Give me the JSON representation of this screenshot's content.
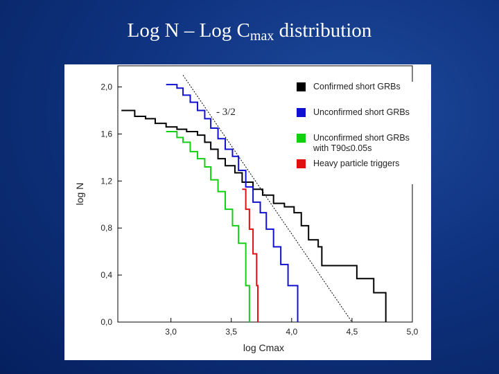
{
  "title": {
    "main": "Log N – Log C",
    "subscript": "max",
    "rest": " distribution"
  },
  "chart_data": {
    "type": "step",
    "xlabel": "log Cmax",
    "ylabel": "log N",
    "xlim": [
      2.56,
      5.0
    ],
    "ylim": [
      0,
      2.18
    ],
    "xticks": [
      {
        "value": 3.0,
        "label": "3,0"
      },
      {
        "value": 3.5,
        "label": "3,5"
      },
      {
        "value": 4.0,
        "label": "4,0"
      },
      {
        "value": 4.5,
        "label": "4,5"
      },
      {
        "value": 5.0,
        "label": "5,0"
      }
    ],
    "yticks": [
      {
        "value": 0.0,
        "label": "0,0"
      },
      {
        "value": 0.4,
        "label": "0,4"
      },
      {
        "value": 0.8,
        "label": "0,8"
      },
      {
        "value": 1.2,
        "label": "1,2"
      },
      {
        "value": 1.6,
        "label": "1,6"
      },
      {
        "value": 2.0,
        "label": "2,0"
      }
    ],
    "series": [
      {
        "name": "Confirmed short GRBs",
        "color": "#000000",
        "x": [
          2.59,
          2.7,
          2.79,
          2.87,
          2.96,
          3.05,
          3.13,
          3.22,
          3.28,
          3.33,
          3.39,
          3.45,
          3.53,
          3.59,
          3.68,
          3.76,
          3.85,
          3.94,
          4.02,
          4.08,
          4.14,
          4.22,
          4.25,
          4.54,
          4.68,
          4.78
        ],
        "values": [
          1.8,
          1.75,
          1.73,
          1.69,
          1.66,
          1.64,
          1.62,
          1.59,
          1.53,
          1.47,
          1.39,
          1.33,
          1.27,
          1.19,
          1.13,
          1.08,
          1.01,
          0.98,
          0.93,
          0.82,
          0.7,
          0.64,
          0.48,
          0.37,
          0.25,
          0
        ]
      },
      {
        "name": "Unconfirmed short GRBs",
        "color": "#1010d0",
        "x": [
          2.96,
          3.05,
          3.1,
          3.16,
          3.22,
          3.28,
          3.33,
          3.39,
          3.45,
          3.51,
          3.56,
          3.62,
          3.68,
          3.74,
          3.79,
          3.85,
          3.91,
          3.97,
          4.05
        ],
        "values": [
          2.02,
          1.99,
          1.93,
          1.87,
          1.8,
          1.73,
          1.65,
          1.56,
          1.47,
          1.41,
          1.29,
          1.15,
          1.02,
          0.93,
          0.79,
          0.64,
          0.49,
          0.31,
          0
        ]
      },
      {
        "name": "Unconfirmed short GRBs with T90≤0.05s",
        "color": "#10d010",
        "x": [
          2.96,
          3.05,
          3.1,
          3.16,
          3.22,
          3.28,
          3.33,
          3.39,
          3.45,
          3.51,
          3.56,
          3.62,
          3.65
        ],
        "values": [
          1.62,
          1.57,
          1.53,
          1.45,
          1.39,
          1.32,
          1.21,
          1.11,
          0.96,
          0.82,
          0.67,
          0.31,
          0
        ]
      },
      {
        "name": "Heavy particle triggers",
        "color": "#e01010",
        "x": [
          3.59,
          3.62,
          3.65,
          3.68,
          3.71,
          3.72
        ],
        "values": [
          1.13,
          0.96,
          0.79,
          0.58,
          0.31,
          0
        ]
      }
    ],
    "reference_line": {
      "label": "- 3/2",
      "x": [
        3.1,
        4.5
      ],
      "values": [
        2.1,
        0
      ]
    }
  }
}
